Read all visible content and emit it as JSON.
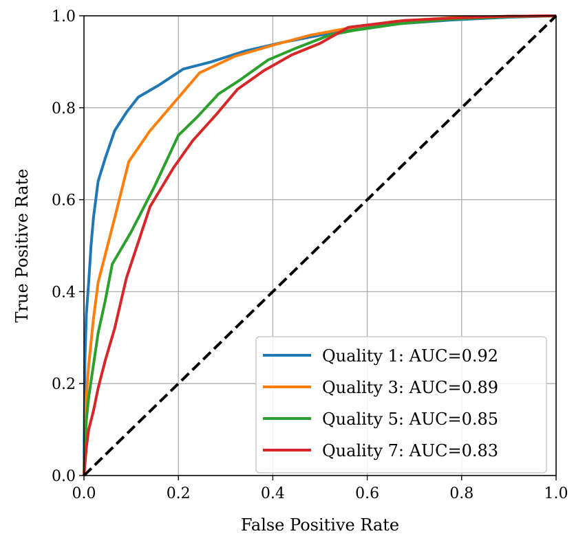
{
  "chart_data": {
    "type": "line",
    "title": "",
    "xlabel": "False Positive Rate",
    "ylabel": "True Positive Rate",
    "xlim": [
      0.0,
      1.0
    ],
    "ylim": [
      0.0,
      1.0
    ],
    "xticks": [
      "0.0",
      "0.2",
      "0.4",
      "0.6",
      "0.8",
      "1.0"
    ],
    "yticks": [
      "0.0",
      "0.2",
      "0.4",
      "0.6",
      "0.8",
      "1.0"
    ],
    "grid": true,
    "legend_position": "lower-right",
    "series": [
      {
        "name": "Quality 1: AUC=0.92",
        "color": "#1f77b4",
        "x": [
          0.0,
          0.002,
          0.005,
          0.01,
          0.015,
          0.02,
          0.03,
          0.045,
          0.065,
          0.09,
          0.115,
          0.16,
          0.21,
          0.27,
          0.34,
          0.42,
          0.5,
          0.58,
          0.67,
          0.78,
          0.9,
          1.0
        ],
        "y": [
          0.0,
          0.25,
          0.35,
          0.42,
          0.5,
          0.56,
          0.64,
          0.69,
          0.75,
          0.79,
          0.823,
          0.85,
          0.884,
          0.9,
          0.923,
          0.942,
          0.958,
          0.972,
          0.983,
          0.991,
          0.997,
          1.0
        ]
      },
      {
        "name": "Quality 3: AUC=0.89",
        "color": "#ff7f0e",
        "x": [
          0.0,
          0.005,
          0.01,
          0.02,
          0.03,
          0.045,
          0.065,
          0.095,
          0.14,
          0.19,
          0.245,
          0.32,
          0.4,
          0.48,
          0.57,
          0.66,
          0.78,
          0.9,
          1.0
        ],
        "y": [
          0.0,
          0.17,
          0.24,
          0.34,
          0.42,
          0.48,
          0.56,
          0.683,
          0.75,
          0.81,
          0.876,
          0.912,
          0.936,
          0.958,
          0.975,
          0.988,
          0.996,
          0.999,
          1.0
        ]
      },
      {
        "name": "Quality 5: AUC=0.85",
        "color": "#2ca02c",
        "x": [
          0.0,
          0.005,
          0.01,
          0.02,
          0.03,
          0.045,
          0.06,
          0.1,
          0.15,
          0.2,
          0.24,
          0.285,
          0.33,
          0.39,
          0.45,
          0.52,
          0.57,
          0.67,
          0.78,
          0.9,
          1.0
        ],
        "y": [
          0.0,
          0.12,
          0.17,
          0.24,
          0.31,
          0.38,
          0.46,
          0.53,
          0.63,
          0.74,
          0.78,
          0.83,
          0.86,
          0.904,
          0.93,
          0.958,
          0.968,
          0.983,
          0.993,
          0.998,
          1.0
        ]
      },
      {
        "name": "Quality 7: AUC=0.83",
        "color": "#d62728",
        "x": [
          0.0,
          0.005,
          0.01,
          0.02,
          0.03,
          0.045,
          0.065,
          0.09,
          0.14,
          0.19,
          0.23,
          0.28,
          0.325,
          0.38,
          0.44,
          0.5,
          0.56,
          0.6,
          0.68,
          0.78,
          0.9,
          1.0
        ],
        "y": [
          0.0,
          0.06,
          0.1,
          0.14,
          0.19,
          0.25,
          0.32,
          0.43,
          0.585,
          0.67,
          0.728,
          0.785,
          0.84,
          0.88,
          0.915,
          0.94,
          0.975,
          0.98,
          0.99,
          0.995,
          0.999,
          1.0
        ]
      },
      {
        "name": "",
        "color": "#000000",
        "dashed": true,
        "x": [
          0.0,
          1.0
        ],
        "y": [
          0.0,
          1.0
        ]
      }
    ]
  }
}
